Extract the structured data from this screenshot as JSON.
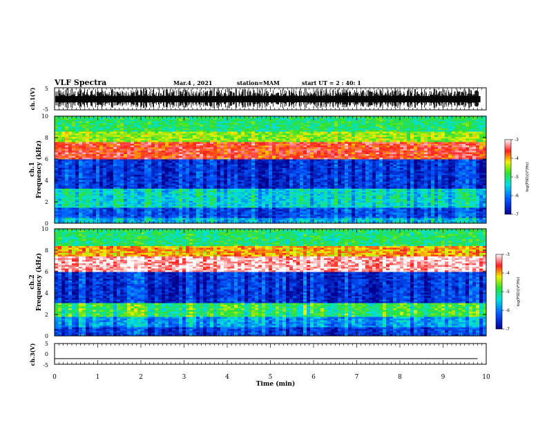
{
  "header": {
    "title": "VLF Spectra",
    "date": "Mar.4 , 2021",
    "station": "station=MAM",
    "start": "start  UT =   2 : 40: 1"
  },
  "chart_data": [
    {
      "type": "line",
      "name": "ch1-waveform",
      "ylabel": "ch.1(V)",
      "ylim": [
        -5,
        5
      ],
      "yticks": [
        "5",
        "-5"
      ],
      "xlim": [
        0,
        10
      ]
    },
    {
      "type": "heatmap",
      "name": "ch1-spectrogram",
      "ylabel_channel": "ch.1",
      "ylabel": "Frequency (kHz)",
      "ylim": [
        0,
        10
      ],
      "yticks": [
        "0",
        "2",
        "4",
        "6",
        "8",
        "10"
      ],
      "xlim": [
        0,
        10
      ],
      "colorbar": {
        "label": "log(PSD)(V²/Hz)",
        "range": [
          -7,
          -3
        ],
        "ticks": [
          "-3",
          "-4",
          "-5",
          "-6",
          "-7"
        ]
      },
      "bands": [
        {
          "low": 0.0,
          "high": 0.5,
          "level": -5.6
        },
        {
          "low": 0.5,
          "high": 1.5,
          "level": -6.3
        },
        {
          "low": 1.5,
          "high": 3.2,
          "level": -5.4
        },
        {
          "low": 3.2,
          "high": 6.0,
          "level": -6.5
        },
        {
          "low": 6.0,
          "high": 7.6,
          "level": -3.6
        },
        {
          "low": 7.6,
          "high": 8.6,
          "level": -4.5
        },
        {
          "low": 8.6,
          "high": 10.0,
          "level": -5.0
        }
      ]
    },
    {
      "type": "heatmap",
      "name": "ch2-spectrogram",
      "ylabel_channel": "ch.2",
      "ylabel": "Frequency (kHz)",
      "ylim": [
        0,
        10
      ],
      "yticks": [
        "0",
        "2",
        "4",
        "6",
        "8",
        "10"
      ],
      "xlim": [
        0,
        10
      ],
      "colorbar": {
        "label": "log(PSD)(V²/Hz)",
        "range": [
          -7,
          -3
        ],
        "ticks": [
          "-3",
          "-4",
          "-5",
          "-6",
          "-7"
        ]
      },
      "bands": [
        {
          "low": 0.0,
          "high": 0.8,
          "level": -6.4
        },
        {
          "low": 0.8,
          "high": 1.8,
          "level": -5.8
        },
        {
          "low": 1.8,
          "high": 3.0,
          "level": -4.9
        },
        {
          "low": 3.0,
          "high": 6.0,
          "level": -6.5
        },
        {
          "low": 6.0,
          "high": 7.4,
          "level": -3.2
        },
        {
          "low": 7.4,
          "high": 8.4,
          "level": -4.0
        },
        {
          "low": 8.4,
          "high": 10.0,
          "level": -5.0
        }
      ]
    },
    {
      "type": "line",
      "name": "ch3-waveform",
      "ylabel": "ch.3(V)",
      "ylim": [
        -5,
        5
      ],
      "yticks": [
        "5",
        "0",
        "-5"
      ],
      "x": [
        0,
        9.8
      ],
      "values": [
        -2.3,
        -2.3
      ],
      "xlim": [
        0,
        10
      ],
      "xlabel": "Time (min)",
      "xticks": [
        "0",
        "1",
        "2",
        "3",
        "4",
        "5",
        "6",
        "7",
        "8",
        "9",
        "10"
      ]
    }
  ]
}
